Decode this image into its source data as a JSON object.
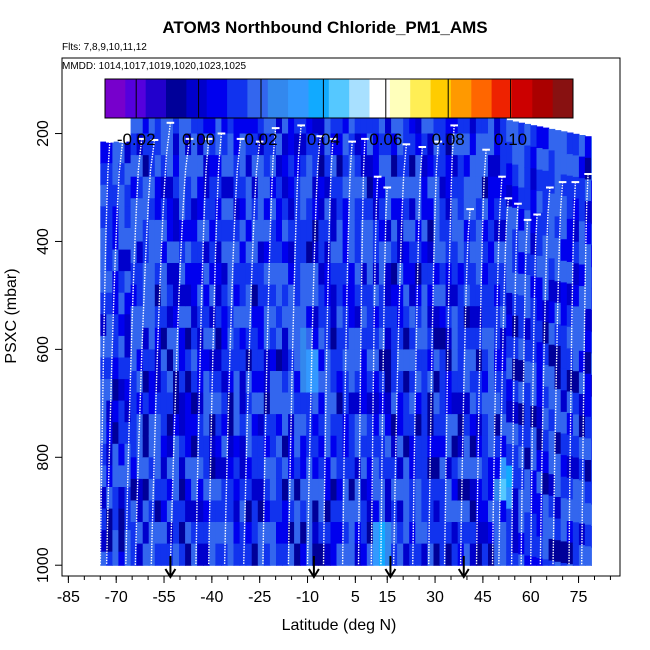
{
  "header": {
    "title": "ATOM3 Northbound Chloride_PM1_AMS",
    "flights": "Flts: 7,8,9,10,11,12",
    "mmdd": "MMDD: 1014,1017,1019,1020,1023,1025"
  },
  "colors": {
    "palette": [
      "#7700cc",
      "#5500dd",
      "#2200cc",
      "#000099",
      "#0000cc",
      "#0000ee",
      "#1133ee",
      "#3366ee",
      "#3388ee",
      "#3399ff",
      "#11aaff",
      "#55c8ff",
      "#a8e0ff",
      "#ffffff",
      "#ffffbb",
      "#ffee55",
      "#ffcc00",
      "#ff9900",
      "#ff6600",
      "#ee2200",
      "#cc0000",
      "#aa0000",
      "#881111"
    ],
    "profile_line": "#ffffff",
    "arrow": "#000000"
  },
  "chart_data": {
    "type": "heatmap",
    "title": "ATOM3 Northbound Chloride_PM1_AMS",
    "xlabel": "Latitude (deg N)",
    "ylabel": "PSXC (mbar)",
    "xlim": [
      -87,
      88
    ],
    "ylim": [
      1020,
      60
    ],
    "x_ticks": [
      -85,
      -70,
      -55,
      -40,
      -25,
      -10,
      5,
      15,
      30,
      45,
      60,
      75
    ],
    "y_ticks": [
      200,
      400,
      600,
      800,
      1000
    ],
    "colorbar": {
      "range": [
        -0.03,
        0.12
      ],
      "ticks": [
        -0.02,
        0.0,
        0.02,
        0.04,
        0.06,
        0.08,
        0.1
      ],
      "tick_labels": [
        "-0.02",
        "0.00",
        "0.02",
        "0.04",
        "0.06",
        "0.08",
        "0.10"
      ]
    },
    "data_extent": {
      "lat_min": -75,
      "lat_max": 79,
      "p_top": 160,
      "p_bottom": 1000
    },
    "flight_markers_lat": [
      -53,
      -8,
      16,
      39
    ],
    "highlights": [
      {
        "lat": -10,
        "p": 620,
        "value": 0.045
      },
      {
        "lat": -12,
        "p": 580,
        "value": 0.03
      },
      {
        "lat": 12,
        "p": 940,
        "value": 0.05
      },
      {
        "lat": 51,
        "p": 830,
        "value": 0.05
      },
      {
        "lat": 50,
        "p": 990,
        "value": 0.025
      },
      {
        "lat": -58,
        "p": 990,
        "value": 0.02
      },
      {
        "lat": -66,
        "p": 990,
        "value": 0.02
      },
      {
        "lat": 25,
        "p": 550,
        "value": 0.025
      },
      {
        "lat": 73,
        "p": 550,
        "value": 0.025
      }
    ],
    "profiles": [
      {
        "lat_top": -72,
        "lat_bottom": -75,
        "p_top": 215
      },
      {
        "lat_top": -68,
        "lat_bottom": -73,
        "p_top": 215
      },
      {
        "lat_top": -62,
        "lat_bottom": -67,
        "p_top": 210
      },
      {
        "lat_top": -58,
        "lat_bottom": -64,
        "p_top": 212
      },
      {
        "lat_top": -53,
        "lat_bottom": -59,
        "p_top": 180
      },
      {
        "lat_top": -47,
        "lat_bottom": -53,
        "p_top": 210
      },
      {
        "lat_top": -41,
        "lat_bottom": -45,
        "p_top": 210
      },
      {
        "lat_top": -37,
        "lat_bottom": -41,
        "p_top": 200
      },
      {
        "lat_top": -31,
        "lat_bottom": -36,
        "p_top": 210
      },
      {
        "lat_top": -25,
        "lat_bottom": -30,
        "p_top": 215
      },
      {
        "lat_top": -20,
        "lat_bottom": -24,
        "p_top": 190
      },
      {
        "lat_top": -12,
        "lat_bottom": -16,
        "p_top": 185
      },
      {
        "lat_top": -6,
        "lat_bottom": -10,
        "p_top": 205
      },
      {
        "lat_top": -2,
        "lat_bottom": -5,
        "p_top": 210
      },
      {
        "lat_top": 4,
        "lat_bottom": 1,
        "p_top": 215
      },
      {
        "lat_top": 8,
        "lat_bottom": 6,
        "p_top": 210
      },
      {
        "lat_top": 12,
        "lat_bottom": 10,
        "p_top": 280
      },
      {
        "lat_top": 15,
        "lat_bottom": 13,
        "p_top": 300
      },
      {
        "lat_top": 21,
        "lat_bottom": 17,
        "p_top": 220
      },
      {
        "lat_top": 26,
        "lat_bottom": 23,
        "p_top": 225
      },
      {
        "lat_top": 31,
        "lat_bottom": 28,
        "p_top": 215
      },
      {
        "lat_top": 36,
        "lat_bottom": 33,
        "p_top": 185
      },
      {
        "lat_top": 41,
        "lat_bottom": 38,
        "p_top": 340
      },
      {
        "lat_top": 46,
        "lat_bottom": 43,
        "p_top": 230
      },
      {
        "lat_top": 51,
        "lat_bottom": 48,
        "p_top": 280
      },
      {
        "lat_top": 53,
        "lat_bottom": 50,
        "p_top": 320
      },
      {
        "lat_top": 56,
        "lat_bottom": 54,
        "p_top": 330
      },
      {
        "lat_top": 59,
        "lat_bottom": 57,
        "p_top": 360
      },
      {
        "lat_top": 62,
        "lat_bottom": 60,
        "p_top": 350
      },
      {
        "lat_top": 66,
        "lat_bottom": 63,
        "p_top": 300
      },
      {
        "lat_top": 70,
        "lat_bottom": 67,
        "p_top": 290
      },
      {
        "lat_top": 74,
        "lat_bottom": 72,
        "p_top": 290
      },
      {
        "lat_top": 78,
        "lat_bottom": 76,
        "p_top": 275
      }
    ]
  }
}
